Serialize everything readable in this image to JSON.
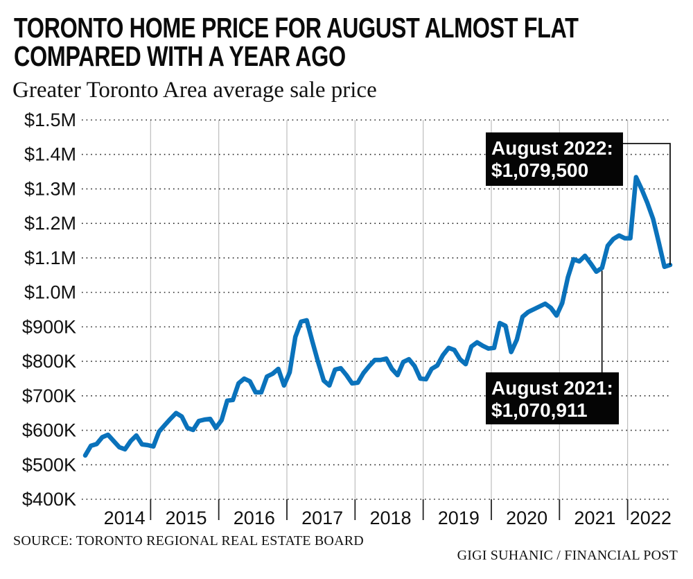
{
  "header": {
    "title_line1": "TORONTO HOME PRICE FOR AUGUST ALMOST FLAT",
    "title_line2": "COMPARED WITH A YEAR AGO",
    "subtitle": "Greater Toronto Area average sale price"
  },
  "footer": {
    "source": "SOURCE: TORONTO REGIONAL REAL ESTATE BOARD",
    "credit": "GIGI SUHANIC / FINANCIAL POST"
  },
  "colors": {
    "line": "#0a72bb",
    "annotation_bg": "#050505",
    "annotation_text": "#ffffff",
    "gridline": "#222222",
    "year_separator": "#bdbdbd"
  },
  "chart_data": {
    "type": "line",
    "title": "TORONTO HOME PRICE FOR AUGUST ALMOST FLAT COMPARED WITH A YEAR AGO",
    "subtitle": "Greater Toronto Area average sale price",
    "xlabel": "",
    "ylabel": "",
    "x_start": "2014-01",
    "x_end": "2022-08",
    "x_frequency": "monthly",
    "ylim": [
      400000,
      1500000
    ],
    "y_ticks": [
      400000,
      500000,
      600000,
      700000,
      800000,
      900000,
      1000000,
      1100000,
      1200000,
      1300000,
      1400000,
      1500000
    ],
    "y_tick_labels": [
      "$400K",
      "$500K",
      "$600K",
      "$700K",
      "$800K",
      "$900K",
      "$1.0M",
      "$1.1M",
      "$1.2M",
      "$1.3M",
      "$1.4M",
      "$1.5M"
    ],
    "x_tick_labels": [
      "2014",
      "2015",
      "2016",
      "2017",
      "2018",
      "2019",
      "2020",
      "2021",
      "2022"
    ],
    "grid": "horizontal dotted",
    "legend": "none",
    "series": [
      {
        "name": "GTA average sale price",
        "values": [
          527000,
          555000,
          560000,
          580000,
          587000,
          569000,
          551000,
          545000,
          569000,
          585000,
          559000,
          557000,
          553000,
          596000,
          615000,
          633000,
          650000,
          640000,
          607000,
          601000,
          627000,
          631000,
          633000,
          607000,
          629000,
          686000,
          688000,
          736000,
          750000,
          742000,
          710000,
          710000,
          756000,
          764000,
          778000,
          730000,
          768000,
          871000,
          915000,
          919000,
          857000,
          798000,
          744000,
          730000,
          776000,
          780000,
          760000,
          736000,
          738000,
          766000,
          786000,
          804000,
          804000,
          808000,
          778000,
          760000,
          798000,
          806000,
          786000,
          750000,
          748000,
          778000,
          788000,
          818000,
          839000,
          833000,
          806000,
          792000,
          843000,
          855000,
          845000,
          837000,
          839000,
          911000,
          903000,
          827000,
          863000,
          929000,
          943000,
          951000,
          959000,
          967000,
          955000,
          933000,
          969000,
          1044000,
          1096000,
          1090000,
          1106000,
          1084000,
          1060000,
          1070911,
          1135000,
          1155000,
          1165000,
          1157000,
          1157000,
          1334000,
          1299000,
          1259000,
          1213000,
          1145000,
          1074000,
          1079500
        ]
      }
    ],
    "annotations": [
      {
        "label": "August 2022:",
        "value_text": "$1,079,500",
        "x": "2022-08",
        "y": 1079500
      },
      {
        "label": "August 2021:",
        "value_text": "$1,070,911",
        "x": "2021-08",
        "y": 1070911
      }
    ]
  }
}
